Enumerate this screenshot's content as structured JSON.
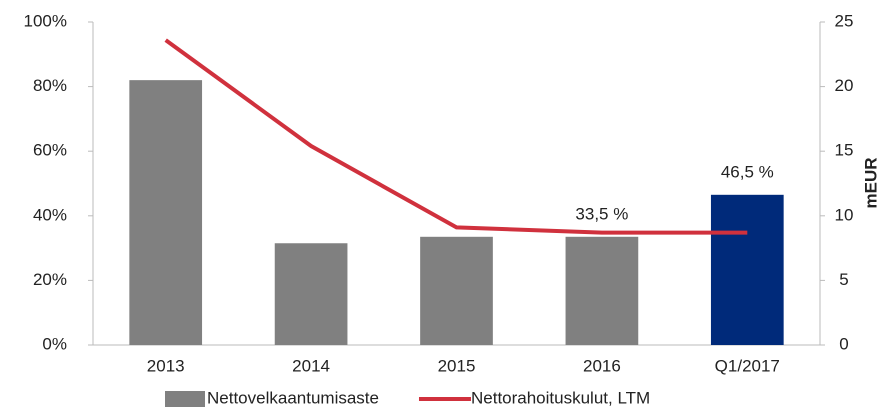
{
  "chart_data": {
    "type": "bar_line",
    "categories": [
      "2013",
      "2014",
      "2015",
      "2016",
      "Q1/2017"
    ],
    "series": [
      {
        "name": "Nettovelkaantumisaste",
        "type": "bar",
        "color": "#808080",
        "colors": [
          "#808080",
          "#808080",
          "#808080",
          "#808080",
          "#002a7a"
        ],
        "values": [
          82,
          31.5,
          33.5,
          33.5,
          46.5
        ],
        "value_labels": [
          null,
          null,
          null,
          "33,5 %",
          "46,5 %"
        ]
      },
      {
        "name": "Nettorahoituskulut, LTM",
        "type": "line",
        "axis": "y2",
        "color": "#d0313d",
        "values": [
          23.6,
          15.4,
          9.1,
          8.7,
          8.7
        ]
      }
    ],
    "ylim": [
      0,
      100
    ],
    "yticks": [
      {
        "value": 0,
        "label": "0%"
      },
      {
        "value": 20,
        "label": "20%"
      },
      {
        "value": 40,
        "label": "40%"
      },
      {
        "value": 60,
        "label": "60%"
      },
      {
        "value": 80,
        "label": "80%"
      },
      {
        "value": 100,
        "label": "100%"
      }
    ],
    "y2lim": [
      0,
      25
    ],
    "y2ticks": [
      0,
      5,
      10,
      15,
      20,
      25
    ],
    "y2label": "mEUR",
    "grid": false
  }
}
